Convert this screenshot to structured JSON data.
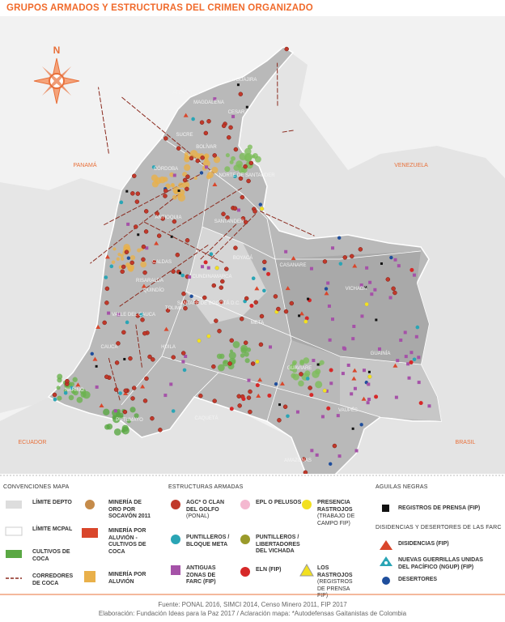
{
  "header": {
    "title": "GRUPOS ARMADOS Y ESTRUCTURAS DEL CRIMEN ORGANIZADO"
  },
  "compass": "N",
  "map": {
    "countries": [
      "PANAMÁ",
      "VENEZUELA",
      "ECUADOR",
      "BRASIL"
    ],
    "departments": [
      "LA GUAJIRA",
      "ATLÁNTICO",
      "MAGDALENA",
      "CESAR",
      "SUCRE",
      "BOLÍVAR",
      "CÓRDOBA",
      "NORTE DE SANTANDER",
      "ANTIOQUIA",
      "SANTANDER",
      "BOYACÁ",
      "CASANARE",
      "CALDAS",
      "RISARALDA",
      "CUNDINAMARCA",
      "QUINDÍO",
      "VALLE DEL CAUCA",
      "TOLIMA",
      "SANTAFÉ DE BOGOTÁ D.C.",
      "META",
      "VICHADA",
      "HUILA",
      "CAUCA",
      "GUAINÍA",
      "GUAVIARE",
      "NARIÑO",
      "PUTUMAYO",
      "CAQUETÁ",
      "VAUPÉS",
      "AMAZONAS"
    ]
  },
  "legend": {
    "map_conventions": {
      "title": "CONVENCIONES MAPA",
      "items": [
        "LÍMITE DEPTO",
        "LÍMITE MCPAL",
        "CULTIVOS DE COCA",
        "CORREDORES DE COCA",
        "MINERÍA DE ORO POR SOCAVÓN 2011",
        "MINERÍA POR ALUVIÓN - CULTIVOS DE COCA",
        "MINERÍA POR ALUVIÓN"
      ]
    },
    "armed_structures": {
      "title": "ESTRUCTURAS ARMADAS",
      "items": [
        {
          "name": "AGC* O CLAN DEL GOLFO",
          "note": "(PONAL)"
        },
        {
          "name": "EPL O PELUSOS"
        },
        {
          "name": "PRESENCIA RASTROJOS",
          "note": "(TRABAJO DE CAMPO FIP)"
        },
        {
          "name": "PUNTILLEROS / BLOQUE META"
        },
        {
          "name": "PUNTILLEROS / LIBERTADORES DEL VICHADA"
        },
        {
          "name": "ANTIGUAS ZONAS DE FARC (FIP)"
        },
        {
          "name": "ELN (FIP)"
        },
        {
          "name": "LOS RASTROJOS",
          "note": "(REGISTROS DE PRENSA FIP)"
        }
      ]
    },
    "aguilas_negras": {
      "title": "AGUILAS NEGRAS",
      "items": [
        "REGISTROS DE PRENSA (FIP)"
      ]
    },
    "farc": {
      "title": "DISIDENCIAS Y DESERTORES DE LAS FARC",
      "items": [
        "DISIDENCIAS (FIP)",
        "NUEVAS GUERRILLAS UNIDAS DEL PACÍFICO (NGUP) (FIP)",
        "DESERTORES"
      ]
    }
  },
  "footer": {
    "source": "Fuente: PONAL 2016, SIMCI 2014, Censo Minero 2011, FIP 2017",
    "credits": "Elaboración: Fundación Ideas para la Paz 2017 / Aclaración mapa: *Autodefensas Gaitanistas de Colombia"
  }
}
